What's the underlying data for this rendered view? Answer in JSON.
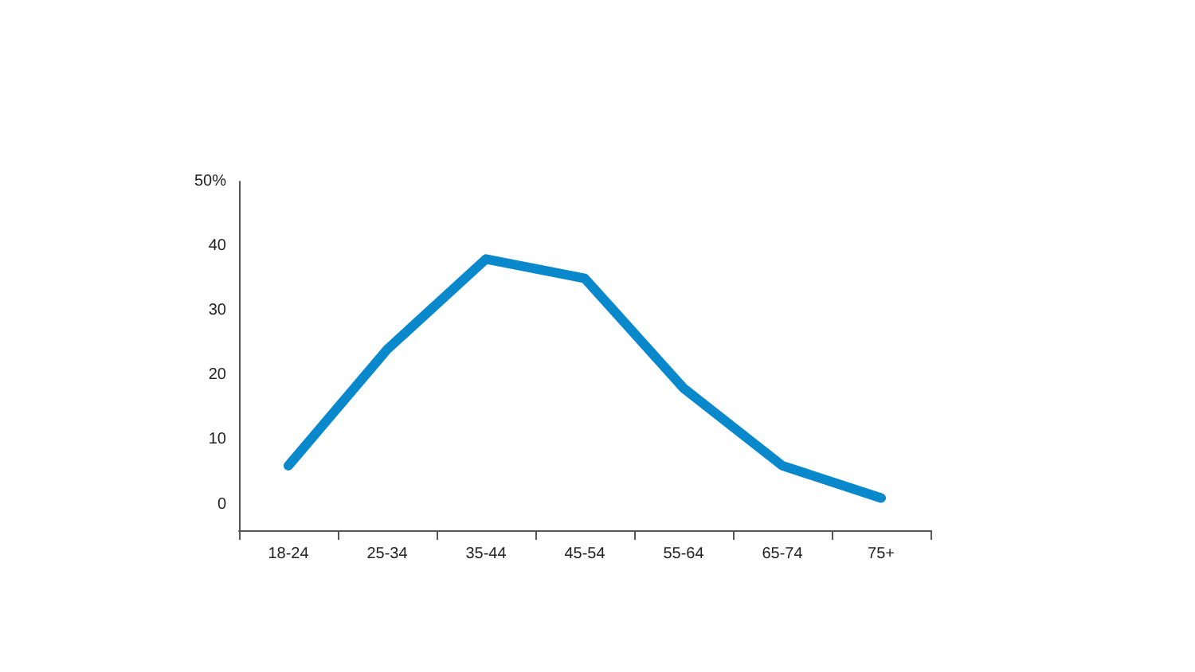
{
  "chart_data": {
    "type": "line",
    "categories": [
      "18-24",
      "25-34",
      "35-44",
      "45-54",
      "55-64",
      "65-74",
      "75+"
    ],
    "series": [
      {
        "color": "#0a88cc",
        "values": [
          6,
          24,
          38,
          35,
          18,
          6,
          1
        ]
      }
    ],
    "ylim": [
      -4,
      50
    ],
    "yticks": [
      0,
      10,
      20,
      30,
      40,
      {
        "value": 50,
        "label": "50%"
      }
    ],
    "grid": false,
    "marker": "none",
    "line_style": "solid"
  }
}
